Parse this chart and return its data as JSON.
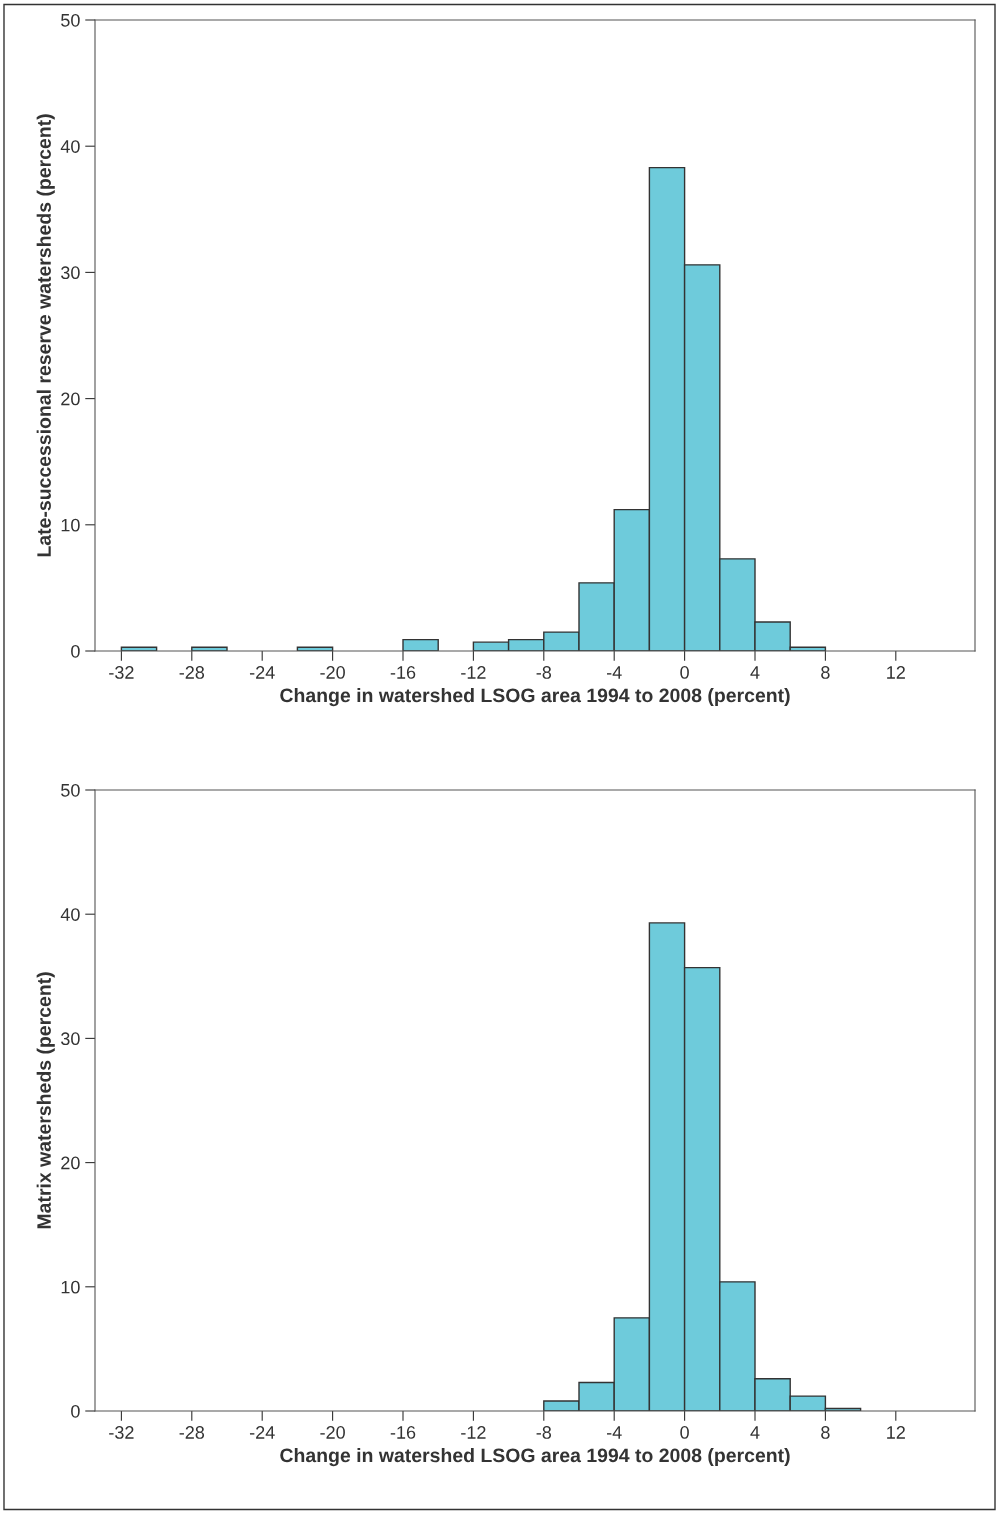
{
  "chart_data": [
    {
      "type": "histogram",
      "xlabel": "Change in watershed LSOG area 1994 to 2008 (percent)",
      "ylabel": "Late-successional reserve watersheds (percent)",
      "color": "#6ecbdb",
      "bins": [
        -32,
        -30,
        -28,
        -26,
        -24,
        -22,
        -20,
        -18,
        -16,
        -14,
        -12,
        -10,
        -8,
        -6,
        -4,
        -2,
        0,
        2,
        4,
        6,
        8,
        10,
        12,
        14,
        16
      ],
      "values": [
        0.3,
        0,
        0.3,
        0,
        0,
        0.3,
        0,
        0,
        0.9,
        0,
        0.7,
        0.9,
        1.5,
        5.4,
        11.2,
        38.3,
        30.6,
        7.3,
        2.3,
        0.3,
        0,
        0,
        0,
        0
      ],
      "xlim": [
        -33.5,
        16.5
      ],
      "xticks": [
        -32,
        -28,
        -24,
        -20,
        -16,
        -12,
        -8,
        -4,
        0,
        4,
        8,
        12
      ],
      "ylim": [
        0,
        50
      ],
      "yticks": [
        0,
        10,
        20,
        30,
        40,
        50
      ],
      "grid": false
    },
    {
      "type": "histogram",
      "xlabel": "Change in watershed LSOG area 1994 to 2008 (percent)",
      "ylabel": "Matrix watersheds (percent)",
      "color": "#6ecbdb",
      "bins": [
        -32,
        -30,
        -28,
        -26,
        -24,
        -22,
        -20,
        -18,
        -16,
        -14,
        -12,
        -10,
        -8,
        -6,
        -4,
        -2,
        0,
        2,
        4,
        6,
        8,
        10,
        12,
        14,
        16
      ],
      "values": [
        0,
        0,
        0,
        0,
        0,
        0,
        0,
        0,
        0,
        0,
        0,
        0,
        0.8,
        2.3,
        7.5,
        39.3,
        35.7,
        10.4,
        2.6,
        1.2,
        0.2,
        0,
        0,
        0
      ],
      "xlim": [
        -33.5,
        16.5
      ],
      "xticks": [
        -32,
        -28,
        -24,
        -20,
        -16,
        -12,
        -8,
        -4,
        0,
        4,
        8,
        12
      ],
      "ylim": [
        0,
        50
      ],
      "yticks": [
        0,
        10,
        20,
        30,
        40,
        50
      ],
      "grid": false
    }
  ]
}
